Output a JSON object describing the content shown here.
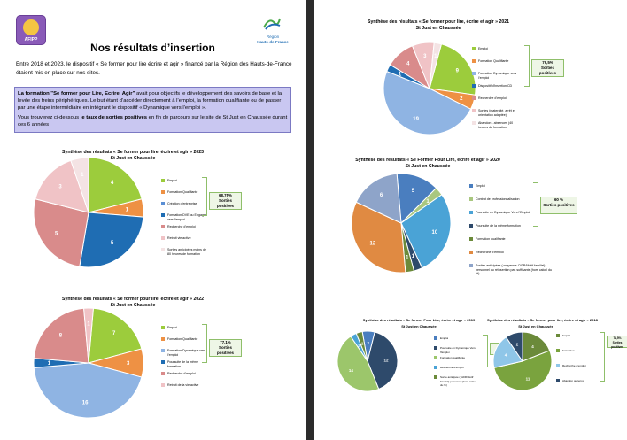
{
  "left_page": {
    "logo_left_text": "AFIPP",
    "logo_right_line1": "Région",
    "logo_right_line2": "Hauts-de-France",
    "title": "Nos résultats d’insertion",
    "intro": "Entre 2018 et 2023, le dispositif « Se former pour lire écrire et agir » financé par la Région des Hauts-de-France étaient mis en place sur nos sites.",
    "infobox_bold": "La formation \"Se former pour Lire, Ecrire, Agir\"",
    "infobox_text": " avait pour objectifs le développement des savoirs de base et la levée des freins périphériques.  Le but étant d’accéder directement à l’emploi, la formation qualifiante ou de passer par une étape intermédiaire en intégrant le dispositif « Dynamique vers l’emploi ».",
    "infobox_line2_a": "Vous trouverez ci-dessous ",
    "infobox_line2_bold": "le taux de sorties positives",
    "infobox_line2_b": " en fin de parcours sur le site de St Just en Chaussée durant ces 6 années"
  },
  "chart_data": [
    {
      "type": "pie",
      "title": "Synthèse des résultats « Se former pour lire, écrire et agir » 2023",
      "subtitle": "St Just en Chaussée",
      "categories": [
        "Emploi",
        "Formation Qualifiante",
        "Création d’entreprise",
        "Formation DVE ou Engager vers l’emploi",
        "Recherche d’emploi",
        "Retrait vie active",
        "Sorties anticipées moins de 80 heures de formation"
      ],
      "values": [
        4,
        1,
        0,
        5,
        5,
        3,
        1
      ],
      "colors": [
        "#9ccc3c",
        "#ee9144",
        "#5b8fd4",
        "#1f6db3",
        "#d98b8b",
        "#f0c3c6",
        "#f4e3e4"
      ],
      "rate": "68,75%",
      "rate_label": "Sorties positives"
    },
    {
      "type": "pie",
      "title": "Synthèse des résultats « Se former pour lire, écrire et agir » 2022",
      "subtitle": "St Just en Chaussée",
      "categories": [
        "Emploi",
        "Formation Qualifiante",
        "Formation Dynamique vers l’emploi",
        "Poursuite de la même formation",
        "Recherche d’emploi",
        "Retrait de la vie active"
      ],
      "values": [
        7,
        3,
        16,
        1,
        8,
        1
      ],
      "colors": [
        "#9ccc3c",
        "#ee9144",
        "#8fb4e3",
        "#1f6db3",
        "#d98b8b",
        "#f0c3c6"
      ],
      "rate": "77,1%",
      "rate_label": "Sorties positives"
    },
    {
      "type": "pie",
      "title": "Synthèse des résultats « Se former pour lire, écrire et agir » 2021",
      "subtitle": "St Just en Chaussée",
      "categories": [
        "Emploi",
        "Formation Qualifiante",
        "Formation Dynamique vers l’emploi",
        "Dispositif d’insertion CD",
        "Recherche d’emploi",
        "Sorties (maternité, arrêt et orientation adaptée)",
        "Abandon - absences (40 heures de formation)"
      ],
      "values": [
        9,
        2,
        19,
        1,
        4,
        3,
        1
      ],
      "colors": [
        "#9ccc3c",
        "#ee9144",
        "#8fb4e3",
        "#1f6db3",
        "#d98b8b",
        "#f0c3c6",
        "#f4e3e4"
      ],
      "rate": "79,5%",
      "rate_label": "Sorties positives"
    },
    {
      "type": "pie",
      "title": "Synthèse des résultats « Se Former Pour Lire, écrire et agir » 2020",
      "subtitle": "St Just en Chaussée",
      "categories": [
        "Emploi",
        "Contrat de professionnalisation",
        "Poursuite en Dynamique Vers l’Emploi",
        "Poursuite de la même formation",
        "Formation qualifiante",
        "Recherche d’emploi",
        "Sorties anticipées ( moyenne: DGR/Motif familial) personnel ou réinsertion pas suffisante (hors calcul du %)"
      ],
      "values": [
        5,
        1,
        10,
        1,
        1,
        12,
        6
      ],
      "colors": [
        "#4a7ebf",
        "#a9c77f",
        "#4aa3d6",
        "#2e4a6b",
        "#6b8a3a",
        "#e08a42",
        "#8ea4c9"
      ],
      "rate": "60 %",
      "rate_label": "Sorties positives"
    },
    {
      "type": "pie",
      "title": "Synthèse des résultats « Se former Pour Lire, écrire et agir » 2019",
      "subtitle": "St Just en Chaussée",
      "categories": [
        "Emploi",
        "Poursuite en Dynamique Vers l’Emploi",
        "Formation qualifiante",
        "Recherche d’emploi",
        "Sortie anticipée ( GDR/Motif familial) personnel (hors calcul du %)"
      ],
      "values": [
        2,
        12,
        14,
        1,
        1
      ],
      "colors": [
        "#4a7ebf",
        "#2e4a6b",
        "#9cc66b",
        "#4aa3d6",
        "#6b8a3a"
      ],
      "rate": "60 %",
      "rate_label": "Sorties positives"
    },
    {
      "type": "pie",
      "title": "Synthèse des résultats « Se former pour lire, écrire et agir » 2018",
      "subtitle": "St Just en Chaussée",
      "categories": [
        "Emploi",
        "Formation",
        "Recherche d’emploi",
        "Abandon ou renvoi"
      ],
      "values": [
        4,
        11,
        4,
        2
      ],
      "colors": [
        "#6b8a3a",
        "#7aa33e",
        "#8fc6e8",
        "#2e4a6b"
      ],
      "rate": "71,5%",
      "rate_label": "Sorties positives"
    }
  ]
}
